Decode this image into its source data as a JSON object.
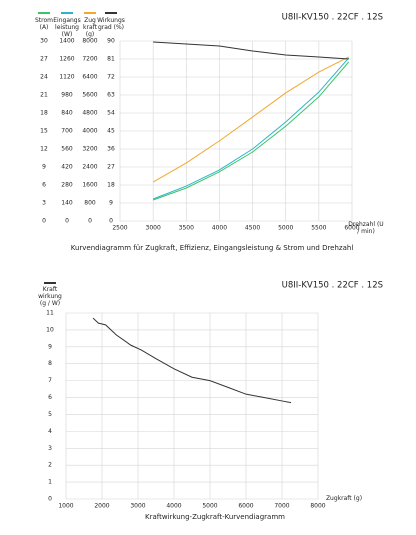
{
  "chart_data": [
    {
      "type": "line",
      "title": "U8II-KV150 . 22CF . 12S",
      "caption": "Kurvendiagramm für Zugkraft, Effizienz, Eingangsleistung &  Strom und Drehzahl",
      "xlabel": "Drehzahl (U / min)",
      "x": [
        3000,
        3500,
        4000,
        4500,
        5000,
        5500,
        5950
      ],
      "xlim": [
        2500,
        6000
      ],
      "xticks": [
        2500,
        3000,
        3500,
        4000,
        4500,
        5000,
        5500,
        6000
      ],
      "grid": true,
      "series": [
        {
          "name": "Strom (A)",
          "color": "#3cc36a",
          "values": [
            3.5,
            5.5,
            8.2,
            11.5,
            15.8,
            20.7,
            26.5
          ],
          "ylim": [
            0,
            30
          ],
          "yticks": [
            0,
            3,
            6,
            9,
            12,
            15,
            18,
            21,
            24,
            27,
            30
          ]
        },
        {
          "name": "Eingangs leistung (W)",
          "color": "#2bb5c9",
          "values": [
            171,
            272,
            397,
            560,
            770,
            1003,
            1268
          ],
          "ylim": [
            0,
            1400
          ],
          "yticks": [
            0,
            140,
            280,
            420,
            560,
            700,
            840,
            980,
            1120,
            1260,
            1400
          ]
        },
        {
          "name": "Zug kraft (g)",
          "color": "#f0a830",
          "values": [
            1730,
            2580,
            3560,
            4620,
            5690,
            6620,
            7290
          ],
          "ylim": [
            0,
            8000
          ],
          "yticks": [
            0,
            800,
            1600,
            2400,
            3200,
            4000,
            4800,
            5600,
            6400,
            7200,
            8000
          ]
        },
        {
          "name": "Wirkungs grad (%)",
          "color": "#333333",
          "values": [
            89.5,
            88.5,
            87.5,
            85,
            83,
            82,
            81
          ],
          "ylim": [
            0,
            90
          ],
          "yticks": [
            0,
            9,
            18,
            27,
            36,
            45,
            54,
            63,
            72,
            81,
            90
          ]
        }
      ]
    },
    {
      "type": "line",
      "title": "U8II-KV150 . 22CF . 12S",
      "caption": "Kraftwirkung-Zugkraft-Kurvendiagramm",
      "xlabel": "Zugkraft (g)",
      "ylabel": "Kraft wirkung (g / W)",
      "x": [
        1750,
        1900,
        2100,
        2400,
        2800,
        3100,
        3500,
        4000,
        4500,
        5000,
        5500,
        6000,
        6500,
        7000,
        7250
      ],
      "xlim": [
        1000,
        8000
      ],
      "xticks": [
        1000,
        2000,
        3000,
        4000,
        5000,
        6000,
        7000,
        8000
      ],
      "ylim": [
        0,
        11
      ],
      "yticks": [
        0,
        1,
        2,
        3,
        4,
        5,
        6,
        7,
        8,
        9,
        10,
        11
      ],
      "grid": true,
      "series": [
        {
          "color": "#333333",
          "values": [
            10.7,
            10.4,
            10.3,
            9.7,
            9.1,
            8.8,
            8.3,
            7.7,
            7.2,
            7.0,
            6.6,
            6.2,
            6.0,
            5.8,
            5.7
          ]
        }
      ]
    }
  ]
}
